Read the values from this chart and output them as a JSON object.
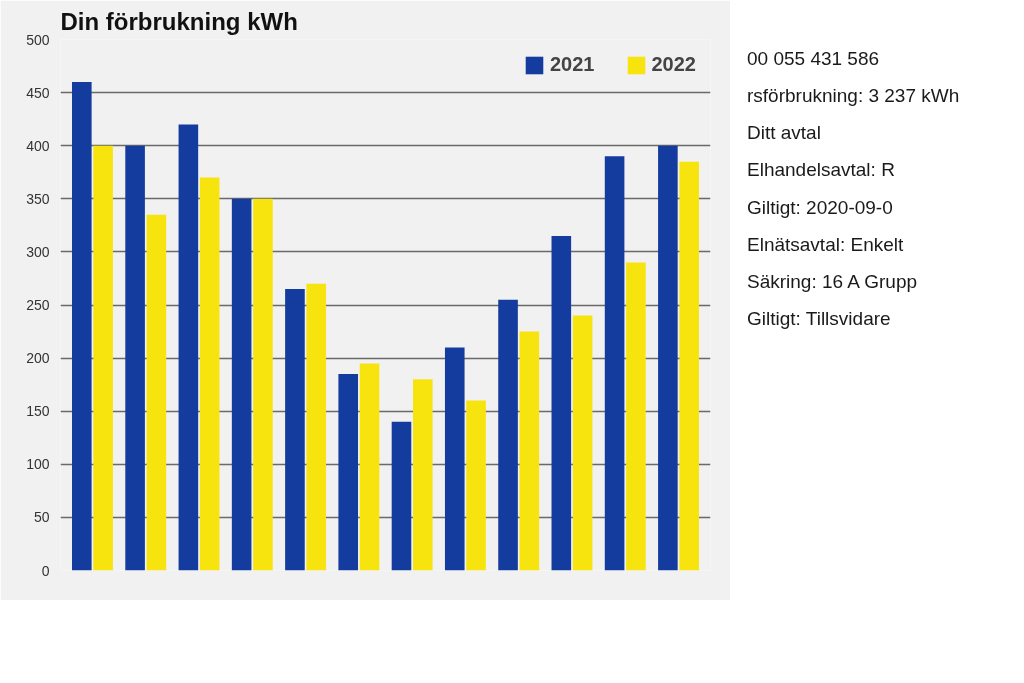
{
  "chart_data": {
    "type": "bar",
    "title": "Din förbrukning kWh",
    "categories": [
      null,
      null,
      null,
      null,
      null,
      null,
      null,
      null,
      null,
      null,
      null,
      null
    ],
    "series": [
      {
        "name": "2021",
        "color": "#143c9e",
        "values": [
          460,
          400,
          420,
          350,
          265,
          185,
          140,
          210,
          255,
          315,
          390,
          400
        ]
      },
      {
        "name": "2022",
        "color": "#f7e40f",
        "values": [
          400,
          335,
          370,
          350,
          270,
          195,
          180,
          160,
          225,
          240,
          290,
          385
        ]
      }
    ],
    "ylim": [
      0,
      500
    ],
    "yticks": [
      0,
      50,
      100,
      150,
      200,
      250,
      300,
      350,
      400,
      450,
      500
    ],
    "grid": "y",
    "legend": "top right",
    "annotations": [
      "00 055 431 586",
      "rsförbrukning: 3 237 kWh",
      "Ditt avtal",
      "Elhandelsavtal: R",
      "Giltigt: 2020-09-0",
      "Elnätsavtal: Enkelt",
      "Säkring: 16 A Grupp",
      "Giltigt: Tillsvidare"
    ]
  }
}
